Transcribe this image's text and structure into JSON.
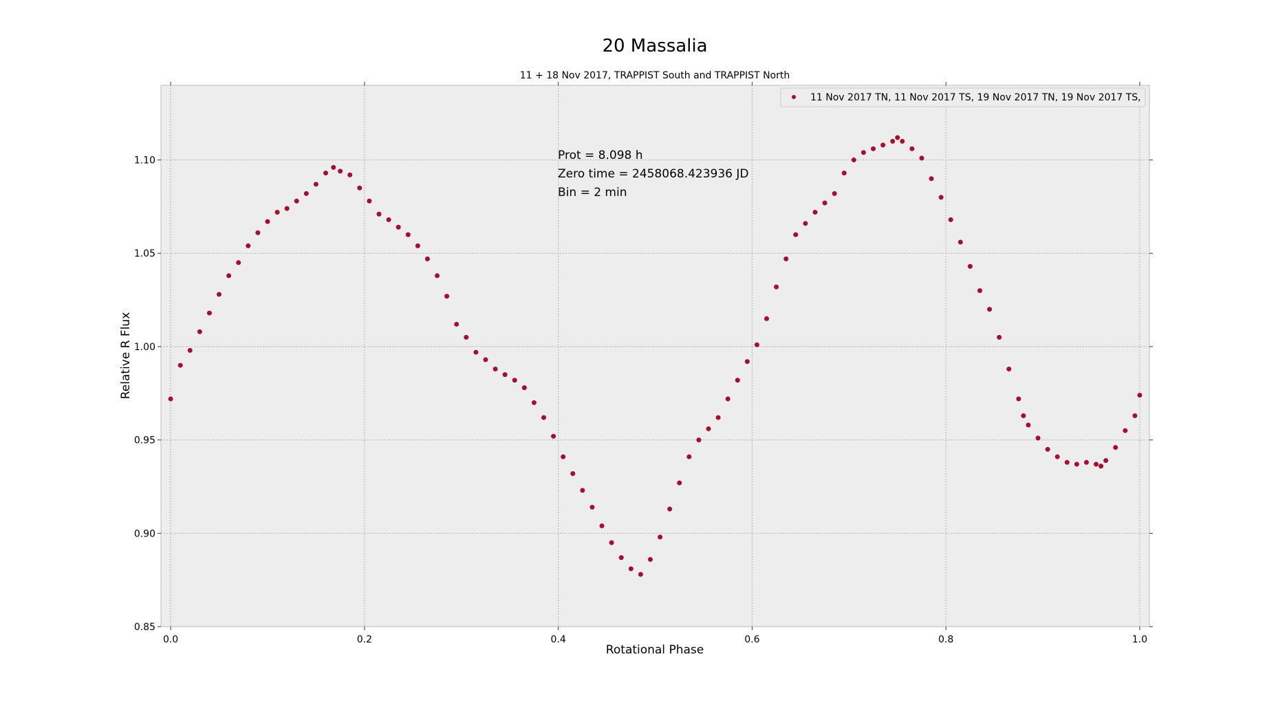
{
  "chart_data": {
    "type": "scatter",
    "title": "20 Massalia",
    "subtitle": "11 + 18 Nov 2017, TRAPPIST South and TRAPPIST North",
    "xlabel": "Rotational Phase",
    "ylabel": "Relative R Flux",
    "xlim": [
      -0.01,
      1.01
    ],
    "ylim": [
      0.85,
      1.14
    ],
    "xticks": [
      0.0,
      0.2,
      0.4,
      0.6,
      0.8,
      1.0
    ],
    "xtick_labels": [
      "0.0",
      "0.2",
      "0.4",
      "0.6",
      "0.8",
      "1.0"
    ],
    "yticks": [
      0.85,
      0.9,
      0.95,
      1.0,
      1.05,
      1.1
    ],
    "ytick_labels": [
      "0.85",
      "0.90",
      "0.95",
      "1.00",
      "1.05",
      "1.10"
    ],
    "grid": true,
    "legend_position": "top-right",
    "annotations": [
      "Prot = 8.098 h",
      "Zero time = 2458068.423936 JD",
      "Bin = 2 min"
    ],
    "series": [
      {
        "name": "11 Nov 2017 TN, 11 Nov 2017 TS, 19 Nov 2017 TN, 19 Nov 2017 TS,",
        "color": "#a50f2d",
        "x": [
          0.0,
          0.01,
          0.02,
          0.03,
          0.04,
          0.05,
          0.06,
          0.07,
          0.08,
          0.09,
          0.1,
          0.11,
          0.12,
          0.13,
          0.14,
          0.15,
          0.16,
          0.168,
          0.175,
          0.185,
          0.195,
          0.205,
          0.215,
          0.225,
          0.235,
          0.245,
          0.255,
          0.265,
          0.275,
          0.285,
          0.295,
          0.305,
          0.315,
          0.325,
          0.335,
          0.345,
          0.355,
          0.365,
          0.375,
          0.385,
          0.395,
          0.405,
          0.415,
          0.425,
          0.435,
          0.445,
          0.455,
          0.465,
          0.475,
          0.485,
          0.495,
          0.505,
          0.515,
          0.525,
          0.535,
          0.545,
          0.555,
          0.565,
          0.575,
          0.585,
          0.595,
          0.605,
          0.615,
          0.625,
          0.635,
          0.645,
          0.655,
          0.665,
          0.675,
          0.685,
          0.695,
          0.705,
          0.715,
          0.725,
          0.735,
          0.745,
          0.75,
          0.755,
          0.765,
          0.775,
          0.785,
          0.795,
          0.805,
          0.815,
          0.825,
          0.835,
          0.845,
          0.855,
          0.865,
          0.875,
          0.88,
          0.885,
          0.895,
          0.905,
          0.915,
          0.925,
          0.935,
          0.945,
          0.955,
          0.96,
          0.965,
          0.975,
          0.985,
          0.995,
          1.0
        ],
        "y": [
          0.972,
          0.99,
          0.998,
          1.008,
          1.018,
          1.028,
          1.038,
          1.045,
          1.054,
          1.061,
          1.067,
          1.072,
          1.074,
          1.078,
          1.082,
          1.087,
          1.093,
          1.096,
          1.094,
          1.092,
          1.085,
          1.078,
          1.071,
          1.068,
          1.064,
          1.06,
          1.054,
          1.047,
          1.038,
          1.027,
          1.012,
          1.005,
          0.997,
          0.993,
          0.988,
          0.985,
          0.982,
          0.978,
          0.97,
          0.962,
          0.952,
          0.941,
          0.932,
          0.923,
          0.914,
          0.904,
          0.895,
          0.887,
          0.881,
          0.878,
          0.886,
          0.898,
          0.913,
          0.927,
          0.941,
          0.95,
          0.956,
          0.962,
          0.972,
          0.982,
          0.992,
          1.001,
          1.015,
          1.032,
          1.047,
          1.06,
          1.066,
          1.072,
          1.077,
          1.082,
          1.093,
          1.1,
          1.104,
          1.106,
          1.108,
          1.11,
          1.112,
          1.11,
          1.106,
          1.101,
          1.09,
          1.08,
          1.068,
          1.056,
          1.043,
          1.03,
          1.02,
          1.005,
          0.988,
          0.972,
          0.963,
          0.958,
          0.951,
          0.945,
          0.941,
          0.938,
          0.937,
          0.938,
          0.937,
          0.936,
          0.939,
          0.946,
          0.955,
          0.963,
          0.974
        ]
      }
    ]
  },
  "legend": {
    "label": "11 Nov 2017 TN, 11 Nov 2017 TS, 19 Nov 2017 TN, 19 Nov 2017 TS,"
  }
}
